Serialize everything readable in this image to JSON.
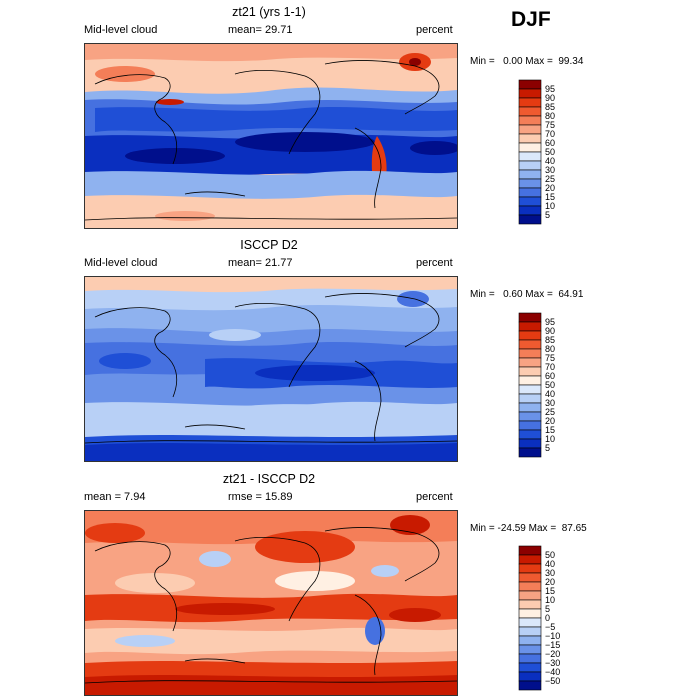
{
  "season": "DJF",
  "chart_data": [
    {
      "type": "heatmap",
      "title": "zt21 (yrs 1-1)",
      "left_label": "Mid-level cloud",
      "mean_text": "mean=  29.71",
      "units": "percent",
      "min_max_text": "Min =   0.00 Max =  99.34",
      "colorbar_levels": [
        "95",
        "90",
        "85",
        "80",
        "75",
        "70",
        "60",
        "50",
        "40",
        "30",
        "25",
        "20",
        "15",
        "10",
        "5"
      ],
      "colors": [
        "#8b0000",
        "#c81a00",
        "#e43b12",
        "#ef5a30",
        "#f47e58",
        "#f8a383",
        "#fcccb1",
        "#fff0e3",
        "#dbe8fb",
        "#b8d0f6",
        "#8fb2ef",
        "#6a92e8",
        "#4671e0",
        "#1f4fd6",
        "#0a2fbf",
        "#000f8c"
      ]
    },
    {
      "type": "heatmap",
      "title": "ISCCP D2",
      "left_label": "Mid-level cloud",
      "mean_text": "mean=  21.77",
      "units": "percent",
      "min_max_text": "Min =   0.60 Max =  64.91",
      "colorbar_levels": [
        "95",
        "90",
        "85",
        "80",
        "75",
        "70",
        "60",
        "50",
        "40",
        "30",
        "25",
        "20",
        "15",
        "10",
        "5"
      ],
      "colors": [
        "#8b0000",
        "#c81a00",
        "#e43b12",
        "#ef5a30",
        "#f47e58",
        "#f8a383",
        "#fcccb1",
        "#fff0e3",
        "#dbe8fb",
        "#b8d0f6",
        "#8fb2ef",
        "#6a92e8",
        "#4671e0",
        "#1f4fd6",
        "#0a2fbf",
        "#000f8c"
      ]
    },
    {
      "type": "heatmap",
      "title": "zt21 - ISCCP D2",
      "left_label": "mean =    7.94",
      "mean_text": "rmse =  15.89",
      "units": "percent",
      "min_max_text": "Min = -24.59 Max =  87.65",
      "colorbar_levels": [
        "50",
        "40",
        "30",
        "20",
        "15",
        "10",
        "5",
        "0",
        "−5",
        "−10",
        "−15",
        "−20",
        "−30",
        "−40",
        "−50"
      ],
      "colors": [
        "#8b0000",
        "#c81a00",
        "#e43b12",
        "#ef5a30",
        "#f47e58",
        "#f8a383",
        "#fcccb1",
        "#fff0e3",
        "#dbe8fb",
        "#b8d0f6",
        "#8fb2ef",
        "#6a92e8",
        "#4671e0",
        "#1f4fd6",
        "#0a2fbf",
        "#000f8c"
      ]
    }
  ]
}
